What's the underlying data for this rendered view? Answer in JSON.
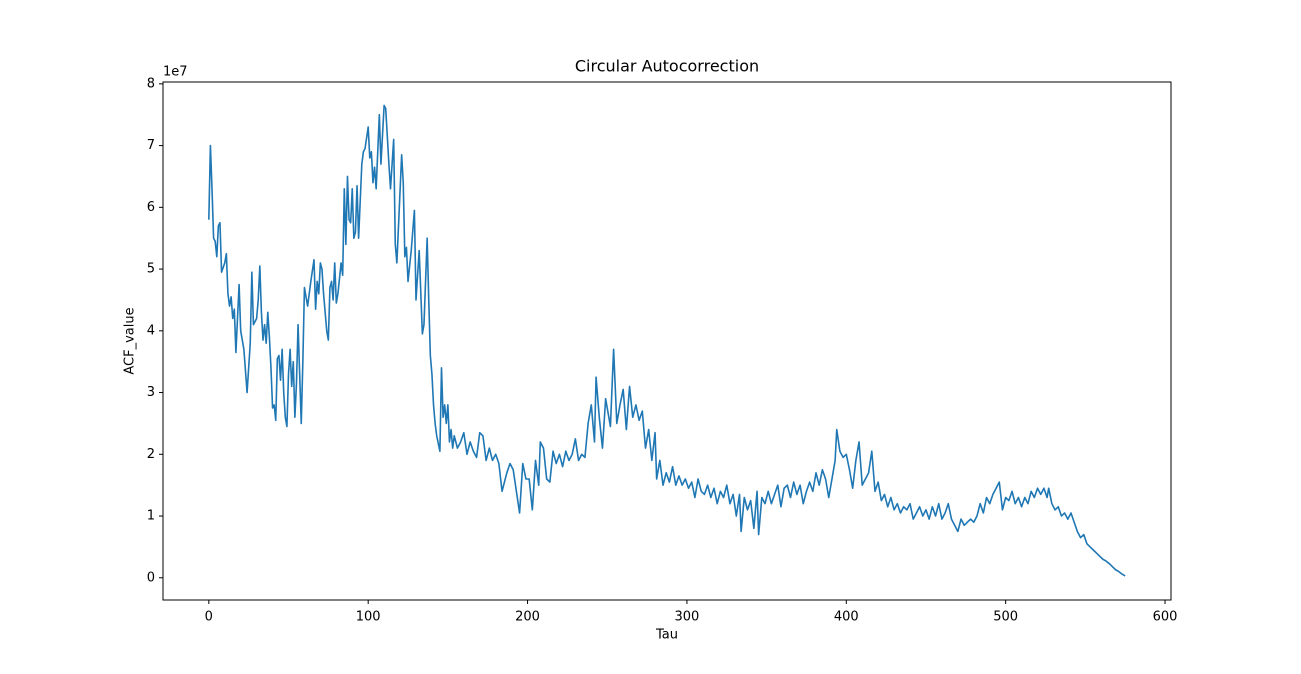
{
  "chart_data": {
    "type": "line",
    "title": "Circular Autocorrection",
    "xlabel": "Tau",
    "ylabel": "ACF_value",
    "y_offset_label": "1e7",
    "xlim": [
      -28.75,
      603.75
    ],
    "xticks": [
      0,
      100,
      200,
      300,
      400,
      500,
      600
    ],
    "ylim": [
      -0.36,
      8.03
    ],
    "yticks": [
      0,
      1,
      2,
      3,
      4,
      5,
      6,
      7,
      8
    ],
    "grid": false,
    "x": [
      0,
      1,
      2,
      3,
      4,
      5,
      6,
      7,
      8,
      10,
      11,
      12,
      13,
      14,
      15,
      16,
      17,
      18,
      19,
      20,
      22,
      24,
      26,
      27,
      28,
      30,
      31,
      32,
      33,
      34,
      35,
      36,
      37,
      38,
      39,
      40,
      41,
      42,
      43,
      44,
      45,
      46,
      47,
      48,
      49,
      50,
      51,
      52,
      53,
      54,
      55,
      56,
      57,
      58,
      59,
      60,
      61,
      62,
      64,
      66,
      67,
      68,
      69,
      70,
      71,
      72,
      74,
      75,
      76,
      77,
      78,
      79,
      80,
      81,
      83,
      84,
      85,
      86,
      87,
      88,
      89,
      90,
      91,
      92,
      93,
      94,
      96,
      97,
      98,
      100,
      101,
      102,
      103,
      104,
      105,
      107,
      108,
      110,
      111,
      113,
      114,
      116,
      117,
      118,
      121,
      122,
      123,
      124,
      125,
      127,
      129,
      130,
      132,
      134,
      135,
      137,
      138,
      139,
      140,
      141,
      142,
      143,
      145,
      146,
      147,
      148,
      149,
      150,
      151,
      152,
      153,
      154,
      156,
      158,
      160,
      162,
      164,
      166,
      168,
      170,
      172,
      174,
      176,
      178,
      180,
      182,
      184,
      185,
      187,
      189,
      191,
      193,
      195,
      197,
      199,
      201,
      203,
      205,
      207,
      208,
      210,
      212,
      214,
      216,
      218,
      220,
      222,
      224,
      226,
      228,
      230,
      232,
      234,
      236,
      238,
      240,
      242,
      243,
      245,
      247,
      249,
      251,
      252,
      254,
      256,
      258,
      260,
      262,
      264,
      266,
      268,
      270,
      272,
      274,
      276,
      278,
      280,
      281,
      283,
      285,
      287,
      289,
      291,
      293,
      295,
      297,
      299,
      301,
      303,
      305,
      307,
      309,
      311,
      313,
      315,
      317,
      319,
      321,
      323,
      325,
      327,
      329,
      331,
      333,
      334,
      336,
      338,
      340,
      342,
      344,
      345,
      347,
      349,
      351,
      353,
      355,
      357,
      359,
      361,
      363,
      365,
      367,
      369,
      371,
      373,
      375,
      377,
      379,
      381,
      383,
      385,
      387,
      389,
      391,
      393,
      394,
      396,
      398,
      400,
      402,
      404,
      406,
      408,
      410,
      412,
      414,
      416,
      418,
      420,
      422,
      424,
      426,
      428,
      430,
      432,
      434,
      436,
      438,
      440,
      442,
      444,
      446,
      448,
      450,
      452,
      454,
      456,
      458,
      460,
      462,
      464,
      466,
      468,
      470,
      472,
      474,
      476,
      478,
      480,
      482,
      484,
      486,
      488,
      490,
      492,
      494,
      496,
      498,
      500,
      502,
      504,
      506,
      508,
      510,
      512,
      514,
      516,
      518,
      520,
      522,
      524,
      526,
      527,
      529,
      531,
      533,
      535,
      537,
      539,
      541,
      543,
      545,
      547,
      549,
      551,
      553,
      555,
      557,
      559,
      561,
      563,
      565,
      567,
      569,
      571,
      573,
      575
    ],
    "series": [
      {
        "color": "#1f77b4",
        "values": [
          5.8,
          7.0,
          6.3,
          5.5,
          5.45,
          5.2,
          5.7,
          5.75,
          4.95,
          5.1,
          5.25,
          4.6,
          4.4,
          4.55,
          4.2,
          4.35,
          3.65,
          4.2,
          4.75,
          4.0,
          3.7,
          3.0,
          3.8,
          4.95,
          4.1,
          4.2,
          4.5,
          5.05,
          4.3,
          3.85,
          4.1,
          3.8,
          4.3,
          3.9,
          3.4,
          2.75,
          2.8,
          2.55,
          3.55,
          3.6,
          3.2,
          3.7,
          3.0,
          2.6,
          2.45,
          3.3,
          3.7,
          3.1,
          3.5,
          2.6,
          3.15,
          4.1,
          3.3,
          2.5,
          3.5,
          4.7,
          4.55,
          4.4,
          4.8,
          5.15,
          4.35,
          4.8,
          4.6,
          5.1,
          5.0,
          4.6,
          4.0,
          3.85,
          4.7,
          4.8,
          4.5,
          5.1,
          4.45,
          4.6,
          5.1,
          4.9,
          6.3,
          5.4,
          6.5,
          5.8,
          5.75,
          6.3,
          5.5,
          5.6,
          6.35,
          5.5,
          6.7,
          6.9,
          6.95,
          7.3,
          6.8,
          6.9,
          6.4,
          6.65,
          6.3,
          7.5,
          6.7,
          7.65,
          7.6,
          6.7,
          6.3,
          7.1,
          5.4,
          5.1,
          6.85,
          6.4,
          5.2,
          5.35,
          4.8,
          5.3,
          5.95,
          4.5,
          5.3,
          3.95,
          4.1,
          5.5,
          4.5,
          3.6,
          3.3,
          2.8,
          2.5,
          2.3,
          2.05,
          3.4,
          2.6,
          2.8,
          2.5,
          2.8,
          2.2,
          2.4,
          2.1,
          2.3,
          2.1,
          2.2,
          2.35,
          2.0,
          2.2,
          2.05,
          1.95,
          2.35,
          2.3,
          1.9,
          2.1,
          1.9,
          2.0,
          1.85,
          1.4,
          1.5,
          1.7,
          1.85,
          1.75,
          1.4,
          1.05,
          1.85,
          1.6,
          1.6,
          1.1,
          1.9,
          1.5,
          2.2,
          2.1,
          1.6,
          1.55,
          2.05,
          1.85,
          2.0,
          1.8,
          2.05,
          1.9,
          2.0,
          2.25,
          1.9,
          2.0,
          1.95,
          2.5,
          2.8,
          2.2,
          3.25,
          2.6,
          2.1,
          2.9,
          2.6,
          2.45,
          3.7,
          2.5,
          2.8,
          3.05,
          2.4,
          3.1,
          2.6,
          2.8,
          2.55,
          2.7,
          2.1,
          2.4,
          1.9,
          2.35,
          1.6,
          1.9,
          1.5,
          1.7,
          1.55,
          1.8,
          1.5,
          1.65,
          1.5,
          1.6,
          1.45,
          1.55,
          1.3,
          1.6,
          1.4,
          1.35,
          1.5,
          1.3,
          1.45,
          1.2,
          1.4,
          1.3,
          1.5,
          1.2,
          1.35,
          1.0,
          1.35,
          0.75,
          1.3,
          1.1,
          1.25,
          0.8,
          1.4,
          0.7,
          1.3,
          1.2,
          1.4,
          1.2,
          1.35,
          1.5,
          1.15,
          1.45,
          1.5,
          1.3,
          1.55,
          1.35,
          1.5,
          1.2,
          1.4,
          1.55,
          1.4,
          1.7,
          1.5,
          1.75,
          1.6,
          1.3,
          1.6,
          1.9,
          2.4,
          2.05,
          1.95,
          2.0,
          1.75,
          1.45,
          1.9,
          2.2,
          1.5,
          1.6,
          1.7,
          2.05,
          1.4,
          1.55,
          1.25,
          1.35,
          1.15,
          1.3,
          1.1,
          1.2,
          1.05,
          1.15,
          1.1,
          1.2,
          0.95,
          1.05,
          1.15,
          1.0,
          1.1,
          0.95,
          1.15,
          1.0,
          1.2,
          0.95,
          1.05,
          1.2,
          0.95,
          0.85,
          0.75,
          0.95,
          0.85,
          0.9,
          0.95,
          0.9,
          1.0,
          1.2,
          1.05,
          1.3,
          1.2,
          1.35,
          1.45,
          1.55,
          1.1,
          1.3,
          1.25,
          1.4,
          1.2,
          1.3,
          1.15,
          1.3,
          1.2,
          1.4,
          1.3,
          1.45,
          1.35,
          1.45,
          1.3,
          1.45,
          1.2,
          1.1,
          1.15,
          1.0,
          1.05,
          0.95,
          1.05,
          0.9,
          0.75,
          0.65,
          0.7,
          0.55,
          0.5,
          0.45,
          0.4,
          0.35,
          0.3,
          0.27,
          0.23,
          0.18,
          0.13,
          0.1,
          0.06,
          0.03
        ]
      }
    ]
  }
}
